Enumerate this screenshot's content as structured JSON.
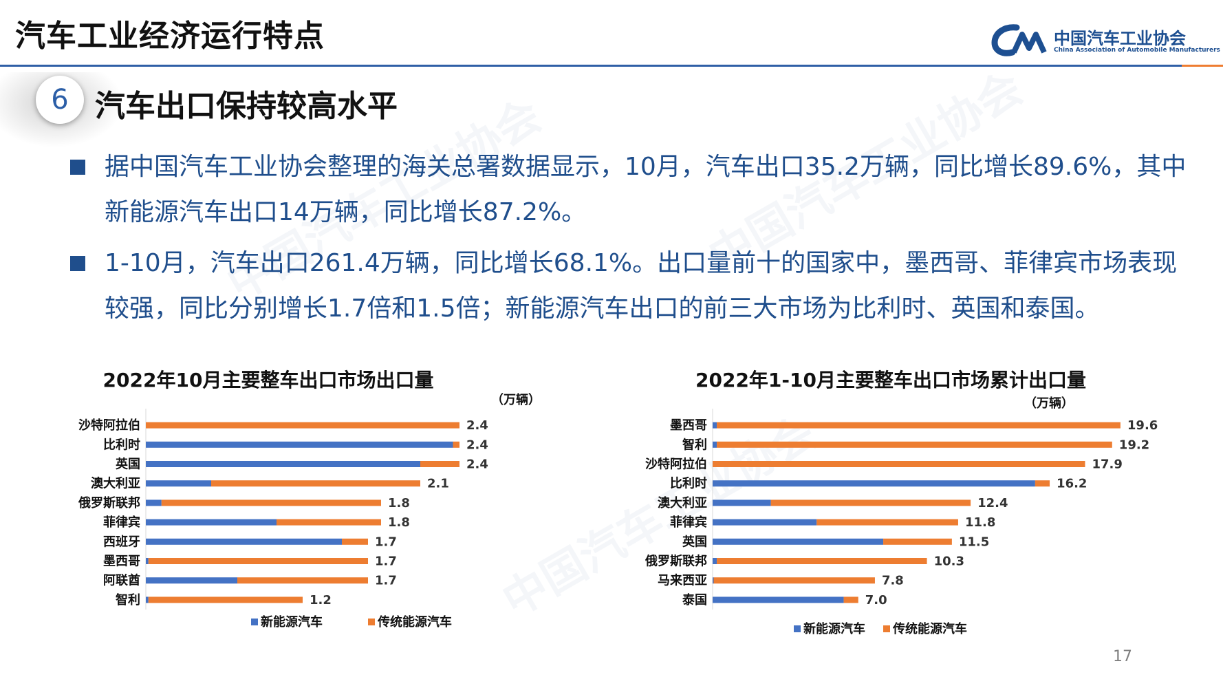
{
  "header": {
    "title": "汽车工业经济运行特点",
    "logo_cn": "中国汽车工业协会",
    "logo_en": "China Association of Automobile Manufacturers"
  },
  "section": {
    "number": "6",
    "title": "汽车出口保持较高水平"
  },
  "bullets": [
    "据中国汽车工业协会整理的海关总署数据显示，10月，汽车出口35.2万辆，同比增长89.6%，其中新能源汽车出口14万辆，同比增长87.2%。",
    "1-10月，汽车出口261.4万辆，同比增长68.1%。出口量前十的国家中，墨西哥、菲律宾市场表现较强，同比分别增长1.7倍和1.5倍；新能源汽车出口的前三大市场为比利时、英国和泰国。"
  ],
  "page_number": "17",
  "colors": {
    "nev": "#4472c4",
    "traditional": "#ed7d31",
    "text_blue": "#1f4e8c",
    "rule_blue": "#2f5fa6"
  },
  "chart_data": [
    {
      "type": "bar",
      "orientation": "horizontal",
      "stacked": true,
      "title": "2022年10月主要整车出口市场出口量",
      "unit": "（万辆）",
      "categories": [
        "沙特阿拉伯",
        "比利时",
        "英国",
        "澳大利亚",
        "俄罗斯联邦",
        "菲律宾",
        "西班牙",
        "墨西哥",
        "阿联酋",
        "智利"
      ],
      "series": [
        {
          "name": "新能源汽车",
          "values": [
            0.0,
            2.35,
            2.1,
            0.5,
            0.12,
            1.0,
            1.5,
            0.02,
            0.7,
            0.02
          ]
        },
        {
          "name": "传统能源汽车",
          "values": [
            2.4,
            0.05,
            0.3,
            1.6,
            1.68,
            0.8,
            0.2,
            1.68,
            1.0,
            1.18
          ]
        }
      ],
      "totals": [
        "2.4",
        "2.4",
        "2.4",
        "2.1",
        "1.8",
        "1.8",
        "1.7",
        "1.7",
        "1.7",
        "1.2"
      ],
      "xlim": [
        0,
        3
      ],
      "legend_position": "bottom"
    },
    {
      "type": "bar",
      "orientation": "horizontal",
      "stacked": true,
      "title": "2022年1-10月主要整车出口市场累计出口量",
      "unit": "（万辆）",
      "categories": [
        "墨西哥",
        "智利",
        "沙特阿拉伯",
        "比利时",
        "澳大利亚",
        "菲律宾",
        "英国",
        "俄罗斯联邦",
        "马来西亚",
        "泰国"
      ],
      "series": [
        {
          "name": "新能源汽车",
          "values": [
            0.2,
            0.2,
            0.0,
            15.5,
            2.8,
            5.0,
            8.2,
            0.2,
            0.05,
            6.3
          ]
        },
        {
          "name": "传统能源汽车",
          "values": [
            19.4,
            19.0,
            17.9,
            0.7,
            9.6,
            6.8,
            3.3,
            10.1,
            7.75,
            0.7
          ]
        }
      ],
      "totals": [
        "19.6",
        "19.2",
        "17.9",
        "16.2",
        "12.4",
        "11.8",
        "11.5",
        "10.3",
        "7.8",
        "7.0"
      ],
      "xlim": [
        0,
        20
      ],
      "legend_position": "bottom"
    }
  ]
}
